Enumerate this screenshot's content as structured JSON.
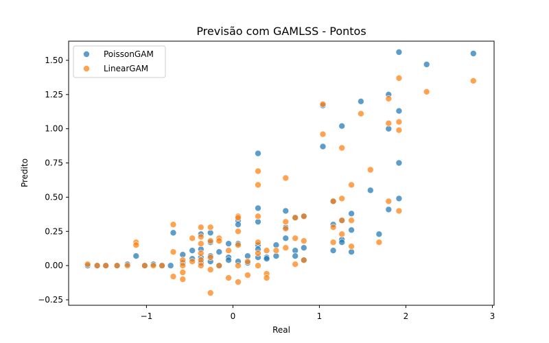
{
  "chart_data": {
    "type": "scatter",
    "title": "Previsão com GAMLSS - Pontos",
    "xlabel": "Real",
    "ylabel": "Predito",
    "xlim": [
      -1.9,
      3.02
    ],
    "ylim": [
      -0.29,
      1.64
    ],
    "xticks": [
      -1,
      0,
      1,
      2,
      3
    ],
    "xtick_labels": [
      "−1",
      "0",
      "1",
      "2",
      "3"
    ],
    "yticks": [
      -0.25,
      0,
      0.25,
      0.5,
      0.75,
      1.0,
      1.25,
      1.5
    ],
    "ytick_labels": [
      "−0.25",
      "0.00",
      "0.25",
      "0.50",
      "0.75",
      "1.00",
      "1.25",
      "1.50"
    ],
    "grid": false,
    "legend_position": "top-left",
    "series": [
      {
        "name": "PoissonGAM",
        "color": "#1f77b4",
        "points": [
          [
            -1.68,
            0.0
          ],
          [
            -1.57,
            0.0
          ],
          [
            -1.47,
            0.0
          ],
          [
            -1.34,
            0.0
          ],
          [
            -1.22,
            0.01
          ],
          [
            -1.12,
            0.07
          ],
          [
            -1.02,
            0.0
          ],
          [
            -0.92,
            0.01
          ],
          [
            -0.82,
            0.0
          ],
          [
            -0.72,
            0.0
          ],
          [
            -0.69,
            0.24
          ],
          [
            -0.58,
            0.08
          ],
          [
            -0.58,
            0.02
          ],
          [
            -0.47,
            0.11
          ],
          [
            -0.47,
            0.05
          ],
          [
            -0.37,
            0.23
          ],
          [
            -0.37,
            0.12
          ],
          [
            -0.37,
            0.06
          ],
          [
            -0.37,
            0.02
          ],
          [
            -0.26,
            0.24
          ],
          [
            -0.26,
            0.17
          ],
          [
            -0.26,
            0.07
          ],
          [
            -0.26,
            0.03
          ],
          [
            -0.16,
            0.1
          ],
          [
            -0.16,
            0.0
          ],
          [
            -0.05,
            0.16
          ],
          [
            -0.05,
            0.06
          ],
          [
            -0.05,
            0.04
          ],
          [
            0.06,
            0.33
          ],
          [
            0.06,
            0.3
          ],
          [
            0.06,
            0.16
          ],
          [
            0.06,
            0.03
          ],
          [
            0.17,
            0.07
          ],
          [
            0.17,
            0.02
          ],
          [
            0.29,
            0.82
          ],
          [
            0.29,
            0.42
          ],
          [
            0.29,
            0.32
          ],
          [
            0.29,
            0.15
          ],
          [
            0.29,
            0.12
          ],
          [
            0.29,
            0.06
          ],
          [
            0.39,
            0.06
          ],
          [
            0.39,
            0.05
          ],
          [
            0.5,
            0.15
          ],
          [
            0.5,
            0.07
          ],
          [
            0.61,
            0.4
          ],
          [
            0.61,
            0.28
          ],
          [
            0.61,
            0.2
          ],
          [
            0.72,
            0.35
          ],
          [
            0.72,
            0.11
          ],
          [
            0.72,
            0.07
          ],
          [
            0.82,
            0.36
          ],
          [
            0.82,
            0.13
          ],
          [
            0.82,
            0.04
          ],
          [
            1.04,
            0.87
          ],
          [
            1.04,
            1.17
          ],
          [
            1.16,
            0.47
          ],
          [
            1.16,
            0.3
          ],
          [
            1.16,
            0.11
          ],
          [
            1.26,
            1.02
          ],
          [
            1.26,
            0.33
          ],
          [
            1.26,
            0.19
          ],
          [
            1.26,
            0.17
          ],
          [
            1.37,
            0.38
          ],
          [
            1.37,
            0.26
          ],
          [
            1.37,
            0.1
          ],
          [
            1.48,
            1.2
          ],
          [
            1.59,
            0.55
          ],
          [
            1.69,
            0.23
          ],
          [
            1.8,
            1.25
          ],
          [
            1.8,
            1.0
          ],
          [
            1.8,
            0.41
          ],
          [
            1.92,
            1.56
          ],
          [
            1.92,
            1.13
          ],
          [
            1.92,
            0.75
          ],
          [
            1.92,
            0.49
          ],
          [
            2.24,
            1.47
          ],
          [
            2.78,
            1.55
          ]
        ]
      },
      {
        "name": "LinearGAM",
        "color": "#ff7f0e",
        "points": [
          [
            -1.68,
            0.01
          ],
          [
            -1.57,
            0.0
          ],
          [
            -1.47,
            0.0
          ],
          [
            -1.34,
            0.0
          ],
          [
            -1.22,
            0.0
          ],
          [
            -1.12,
            0.17
          ],
          [
            -1.12,
            0.15
          ],
          [
            -1.02,
            0.0
          ],
          [
            -0.92,
            0.0
          ],
          [
            -0.82,
            0.0
          ],
          [
            -0.69,
            0.3
          ],
          [
            -0.69,
            0.1
          ],
          [
            -0.69,
            -0.08
          ],
          [
            -0.58,
            0.04
          ],
          [
            -0.58,
            0.0
          ],
          [
            -0.58,
            -0.05
          ],
          [
            -0.58,
            -0.1
          ],
          [
            -0.47,
            0.2
          ],
          [
            -0.47,
            0.03
          ],
          [
            -0.37,
            0.28
          ],
          [
            -0.37,
            0.21
          ],
          [
            -0.37,
            0.16
          ],
          [
            -0.37,
            0.09
          ],
          [
            -0.37,
            0.04
          ],
          [
            -0.37,
            0.0
          ],
          [
            -0.26,
            0.28
          ],
          [
            -0.26,
            0.18
          ],
          [
            -0.26,
            0.06
          ],
          [
            -0.26,
            -0.03
          ],
          [
            -0.26,
            -0.2
          ],
          [
            -0.16,
            0.2
          ],
          [
            -0.16,
            0.18
          ],
          [
            -0.16,
            0.0
          ],
          [
            -0.05,
            0.11
          ],
          [
            -0.05,
            -0.09
          ],
          [
            0.06,
            0.36
          ],
          [
            0.06,
            0.35
          ],
          [
            0.06,
            0.25
          ],
          [
            0.06,
            0.15
          ],
          [
            0.06,
            0.0
          ],
          [
            0.06,
            -0.12
          ],
          [
            0.17,
            0.03
          ],
          [
            0.17,
            -0.07
          ],
          [
            0.29,
            0.69
          ],
          [
            0.29,
            0.59
          ],
          [
            0.29,
            0.36
          ],
          [
            0.29,
            0.17
          ],
          [
            0.29,
            0.09
          ],
          [
            0.29,
            0.0
          ],
          [
            0.39,
            0.11
          ],
          [
            0.39,
            -0.06
          ],
          [
            0.39,
            -0.09
          ],
          [
            0.5,
            0.11
          ],
          [
            0.61,
            0.64
          ],
          [
            0.61,
            0.32
          ],
          [
            0.61,
            0.27
          ],
          [
            0.61,
            0.13
          ],
          [
            0.72,
            0.35
          ],
          [
            0.72,
            0.2
          ],
          [
            0.72,
            0.01
          ],
          [
            0.82,
            0.36
          ],
          [
            0.82,
            0.18
          ],
          [
            0.82,
            0.04
          ],
          [
            1.04,
            1.18
          ],
          [
            1.04,
            0.96
          ],
          [
            1.16,
            0.47
          ],
          [
            1.16,
            0.28
          ],
          [
            1.16,
            0.17
          ],
          [
            1.26,
            0.86
          ],
          [
            1.26,
            0.49
          ],
          [
            1.26,
            0.33
          ],
          [
            1.26,
            0.23
          ],
          [
            1.37,
            0.59
          ],
          [
            1.37,
            0.33
          ],
          [
            1.37,
            0.14
          ],
          [
            1.48,
            1.11
          ],
          [
            1.59,
            0.7
          ],
          [
            1.69,
            0.17
          ],
          [
            1.8,
            1.22
          ],
          [
            1.8,
            1.04
          ],
          [
            1.8,
            0.47
          ],
          [
            1.92,
            1.37
          ],
          [
            1.92,
            1.05
          ],
          [
            1.92,
            0.99
          ],
          [
            1.92,
            0.4
          ],
          [
            2.24,
            1.27
          ],
          [
            2.78,
            1.35
          ]
        ]
      }
    ]
  }
}
